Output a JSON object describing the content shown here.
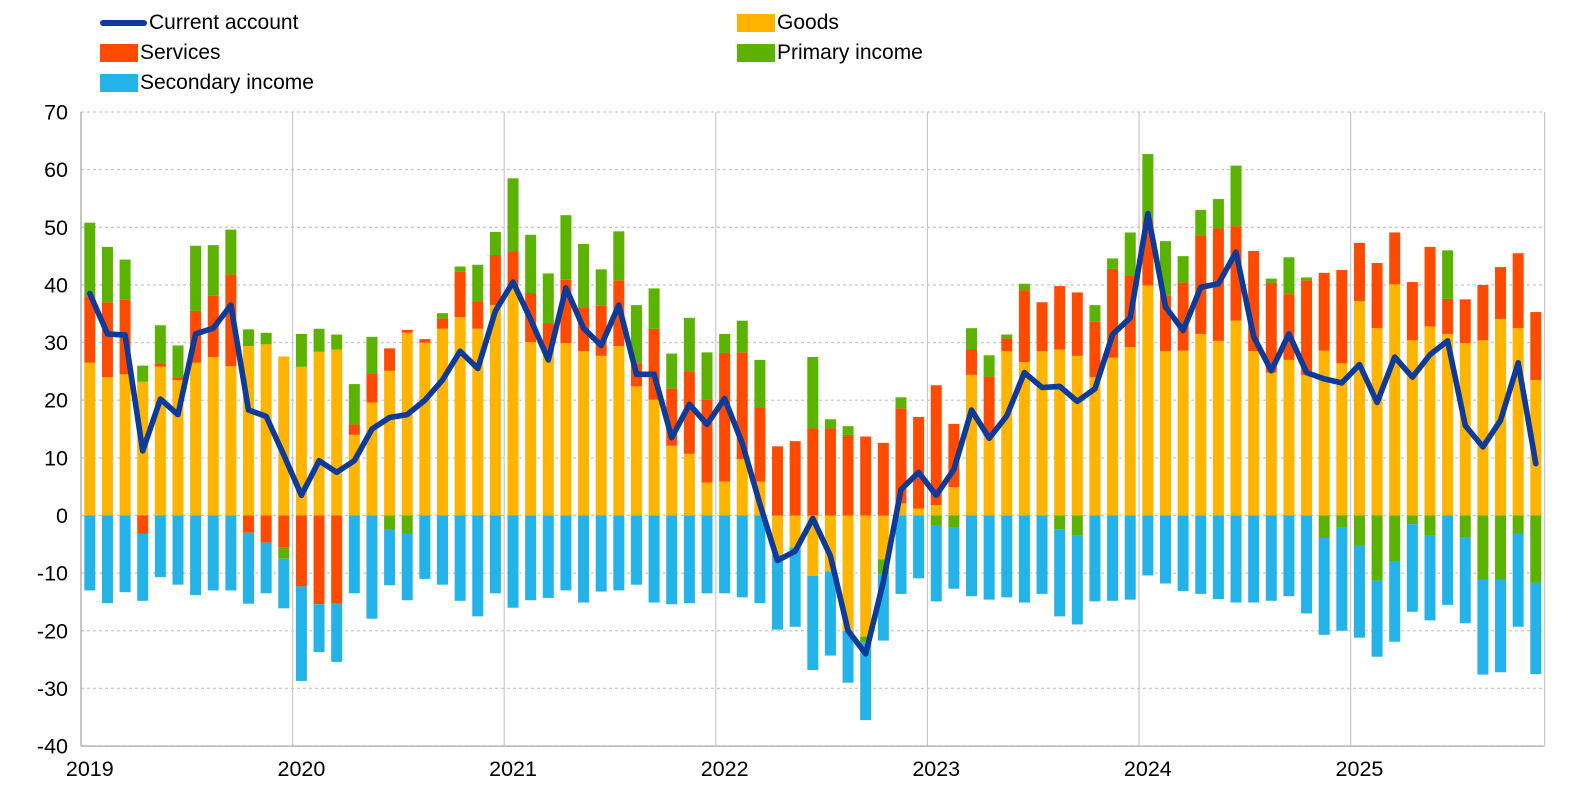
{
  "legend": {
    "current_account": "Current account",
    "goods": "Goods",
    "services": "Services",
    "primary_income": "Primary income",
    "secondary_income": "Secondary income"
  },
  "colors": {
    "current_account": "#0e3a99",
    "goods": "#ffb400",
    "services": "#ff4b00",
    "primary_income": "#5bb300",
    "secondary_income": "#24b3e8",
    "gridline": "#c9c9c9",
    "axis": "#b3b3b3",
    "text": "#000000"
  },
  "y_axis": {
    "min": -40,
    "max": 70,
    "step": 10,
    "tick_labels": [
      "70",
      "60",
      "50",
      "40",
      "30",
      "20",
      "10",
      "0",
      "-10",
      "-20",
      "-30",
      "-40"
    ]
  },
  "x_axis": {
    "year_labels": [
      "2019",
      "2020",
      "2021",
      "2022",
      "2023",
      "2024",
      "2025"
    ]
  },
  "chart_data": {
    "type": "combo: stacked bar + line",
    "title": "",
    "legend_position": "top",
    "grid": true,
    "months": [
      "2019-01",
      "2019-02",
      "2019-03",
      "2019-04",
      "2019-05",
      "2019-06",
      "2019-07",
      "2019-08",
      "2019-09",
      "2019-10",
      "2019-11",
      "2019-12",
      "2020-01",
      "2020-02",
      "2020-03",
      "2020-04",
      "2020-05",
      "2020-06",
      "2020-07",
      "2020-08",
      "2020-09",
      "2020-10",
      "2020-11",
      "2020-12",
      "2021-01",
      "2021-02",
      "2021-03",
      "2021-04",
      "2021-05",
      "2021-06",
      "2021-07",
      "2021-08",
      "2021-09",
      "2021-10",
      "2021-11",
      "2021-12",
      "2022-01",
      "2022-02",
      "2022-03",
      "2022-04",
      "2022-05",
      "2022-06",
      "2022-07",
      "2022-08",
      "2022-09",
      "2022-10",
      "2022-11",
      "2022-12",
      "2023-01",
      "2023-02",
      "2023-03",
      "2023-04",
      "2023-05",
      "2023-06",
      "2023-07",
      "2023-08",
      "2023-09",
      "2023-10",
      "2023-11",
      "2023-12",
      "2024-01",
      "2024-02",
      "2024-03",
      "2024-04",
      "2024-05",
      "2024-06",
      "2024-07",
      "2024-08",
      "2024-09",
      "2024-10",
      "2024-11",
      "2024-12",
      "2025-01",
      "2025-02",
      "2025-03",
      "2025-04",
      "2025-05",
      "2025-06",
      "2025-07",
      "2025-08",
      "2025-09",
      "2025-10",
      "2025-11"
    ],
    "bar_series": [
      {
        "name": "Goods",
        "color_key": "goods",
        "values": [
          26.5,
          24.0,
          24.5,
          23.2,
          25.8,
          23.5,
          26.5,
          27.5,
          25.9,
          29.4,
          29.7,
          27.6,
          25.8,
          28.4,
          28.8,
          14.0,
          19.6,
          25.1,
          31.7,
          30.0,
          32.4,
          34.4,
          32.4,
          36.5,
          39.5,
          30.1,
          28.3,
          29.9,
          28.5,
          27.7,
          29.4,
          22.4,
          20.1,
          12.1,
          10.7,
          5.7,
          5.9,
          9.8,
          5.9,
          -6.8,
          -5.5,
          -10.5,
          -9.7,
          -20.0,
          -21.0,
          -7.6,
          2.1,
          1.2,
          1.8,
          4.9,
          24.4,
          13.8,
          28.5,
          26.6,
          28.5,
          28.8,
          27.7,
          24.0,
          27.4,
          29.2,
          39.9,
          28.5,
          28.6,
          31.5,
          30.3,
          33.8,
          28.5,
          24.8,
          27.0,
          24.4,
          28.6,
          26.4,
          37.2,
          32.5,
          40.1,
          30.4,
          32.8,
          31.5,
          29.9,
          30.4,
          34.1,
          32.5,
          23.5
        ]
      },
      {
        "name": "Services",
        "color_key": "services",
        "values": [
          11.5,
          13.0,
          12.9,
          -3.2,
          0.5,
          0.5,
          9.0,
          10.6,
          15.9,
          -3.0,
          -4.7,
          -5.6,
          -12.3,
          -15.4,
          -15.3,
          1.8,
          5.1,
          3.9,
          0.5,
          0.6,
          1.8,
          7.9,
          4.8,
          8.7,
          6.3,
          8.5,
          5.1,
          11.0,
          7.6,
          8.7,
          11.4,
          4.0,
          12.3,
          9.9,
          14.3,
          14.4,
          22.3,
          18.5,
          12.9,
          12.0,
          12.9,
          15.1,
          15.1,
          14.0,
          13.7,
          12.6,
          16.5,
          15.9,
          20.8,
          11.0,
          4.4,
          10.3,
          2.2,
          12.5,
          8.5,
          11.0,
          11.0,
          9.6,
          15.4,
          12.5,
          11.3,
          9.7,
          11.8,
          17.1,
          19.5,
          16.4,
          17.4,
          15.6,
          11.4,
          16.4,
          13.5,
          16.2,
          10.1,
          11.3,
          9.0,
          10.1,
          13.8,
          6.1,
          7.6,
          9.6,
          9.0,
          13.0,
          11.8
        ]
      },
      {
        "name": "Primary income",
        "color_key": "primary_income",
        "values": [
          12.8,
          9.6,
          7.0,
          2.8,
          6.7,
          5.5,
          11.3,
          8.8,
          7.8,
          2.9,
          2.0,
          -1.9,
          5.7,
          4.0,
          2.6,
          7.0,
          6.3,
          -2.5,
          -3.2,
          0.0,
          0.9,
          0.9,
          6.3,
          4.0,
          12.7,
          10.1,
          8.6,
          11.2,
          11.0,
          6.3,
          8.5,
          10.1,
          7.0,
          6.1,
          9.3,
          8.2,
          3.3,
          5.5,
          8.2,
          0.0,
          0.0,
          12.4,
          1.6,
          1.5,
          -1.0,
          -2.6,
          1.9,
          0.0,
          -1.8,
          -2.1,
          3.7,
          3.7,
          0.7,
          1.1,
          0.0,
          -2.4,
          -3.5,
          2.9,
          1.8,
          7.4,
          11.5,
          9.4,
          4.6,
          4.4,
          5.1,
          10.5,
          0.0,
          0.7,
          6.4,
          0.5,
          -3.9,
          -2.0,
          -5.2,
          -11.3,
          -7.9,
          -1.5,
          -3.5,
          8.4,
          -3.8,
          -11.1,
          -11.1,
          -3.2,
          -11.7
        ]
      },
      {
        "name": "Secondary income",
        "color_key": "secondary_income",
        "values": [
          -13.0,
          -15.2,
          -13.3,
          -11.6,
          -10.7,
          -12.0,
          -13.8,
          -13.0,
          -13.0,
          -12.3,
          -8.8,
          -8.6,
          -16.4,
          -8.3,
          -10.1,
          -13.5,
          -17.9,
          -9.6,
          -11.5,
          -11.0,
          -12.0,
          -14.8,
          -17.5,
          -13.5,
          -16.0,
          -14.7,
          -14.3,
          -13.0,
          -15.1,
          -13.2,
          -13.0,
          -12.0,
          -15.1,
          -15.4,
          -15.2,
          -13.5,
          -13.5,
          -14.2,
          -15.2,
          -13.0,
          -13.8,
          -16.3,
          -14.6,
          -9.0,
          -13.5,
          -11.5,
          -13.6,
          -10.9,
          -13.1,
          -10.6,
          -14.0,
          -14.6,
          -14.2,
          -15.1,
          -13.6,
          -15.1,
          -15.4,
          -14.9,
          -14.8,
          -14.6,
          -10.4,
          -11.8,
          -13.1,
          -13.6,
          -14.5,
          -15.1,
          -15.1,
          -14.8,
          -14.0,
          -17.0,
          -16.8,
          -18.0,
          -16.0,
          -13.2,
          -14.0,
          -15.2,
          -14.7,
          -15.5,
          -14.9,
          -16.5,
          -16.1,
          -16.1,
          -15.8
        ]
      }
    ],
    "line_series": {
      "name": "Current account",
      "color_key": "current_account",
      "values": [
        38.5,
        31.5,
        31.3,
        11.2,
        20.2,
        17.5,
        31.5,
        32.5,
        36.5,
        18.3,
        17.2,
        10.5,
        3.5,
        9.5,
        7.5,
        9.5,
        15.0,
        17.0,
        17.5,
        20.0,
        23.5,
        28.5,
        25.5,
        35.5,
        40.5,
        34.0,
        27.0,
        39.5,
        32.5,
        29.5,
        36.5,
        24.5,
        24.5,
        13.5,
        19.3,
        15.8,
        20.3,
        12.5,
        2.0,
        -7.8,
        -6.2,
        -0.5,
        -7.0,
        -20.0,
        -24.0,
        -11.5,
        4.5,
        7.5,
        3.5,
        8.0,
        18.3,
        13.4,
        17.3,
        24.8,
        22.2,
        22.4,
        19.8,
        22.0,
        31.4,
        34.3,
        52.4,
        36.2,
        32.1,
        39.6,
        40.2,
        45.7,
        31.0,
        25.1,
        31.5,
        24.8,
        23.7,
        23.0,
        26.2,
        19.6,
        27.5,
        24.0,
        27.9,
        30.3,
        15.6,
        11.9,
        16.5,
        26.5,
        9.0
      ]
    }
  }
}
